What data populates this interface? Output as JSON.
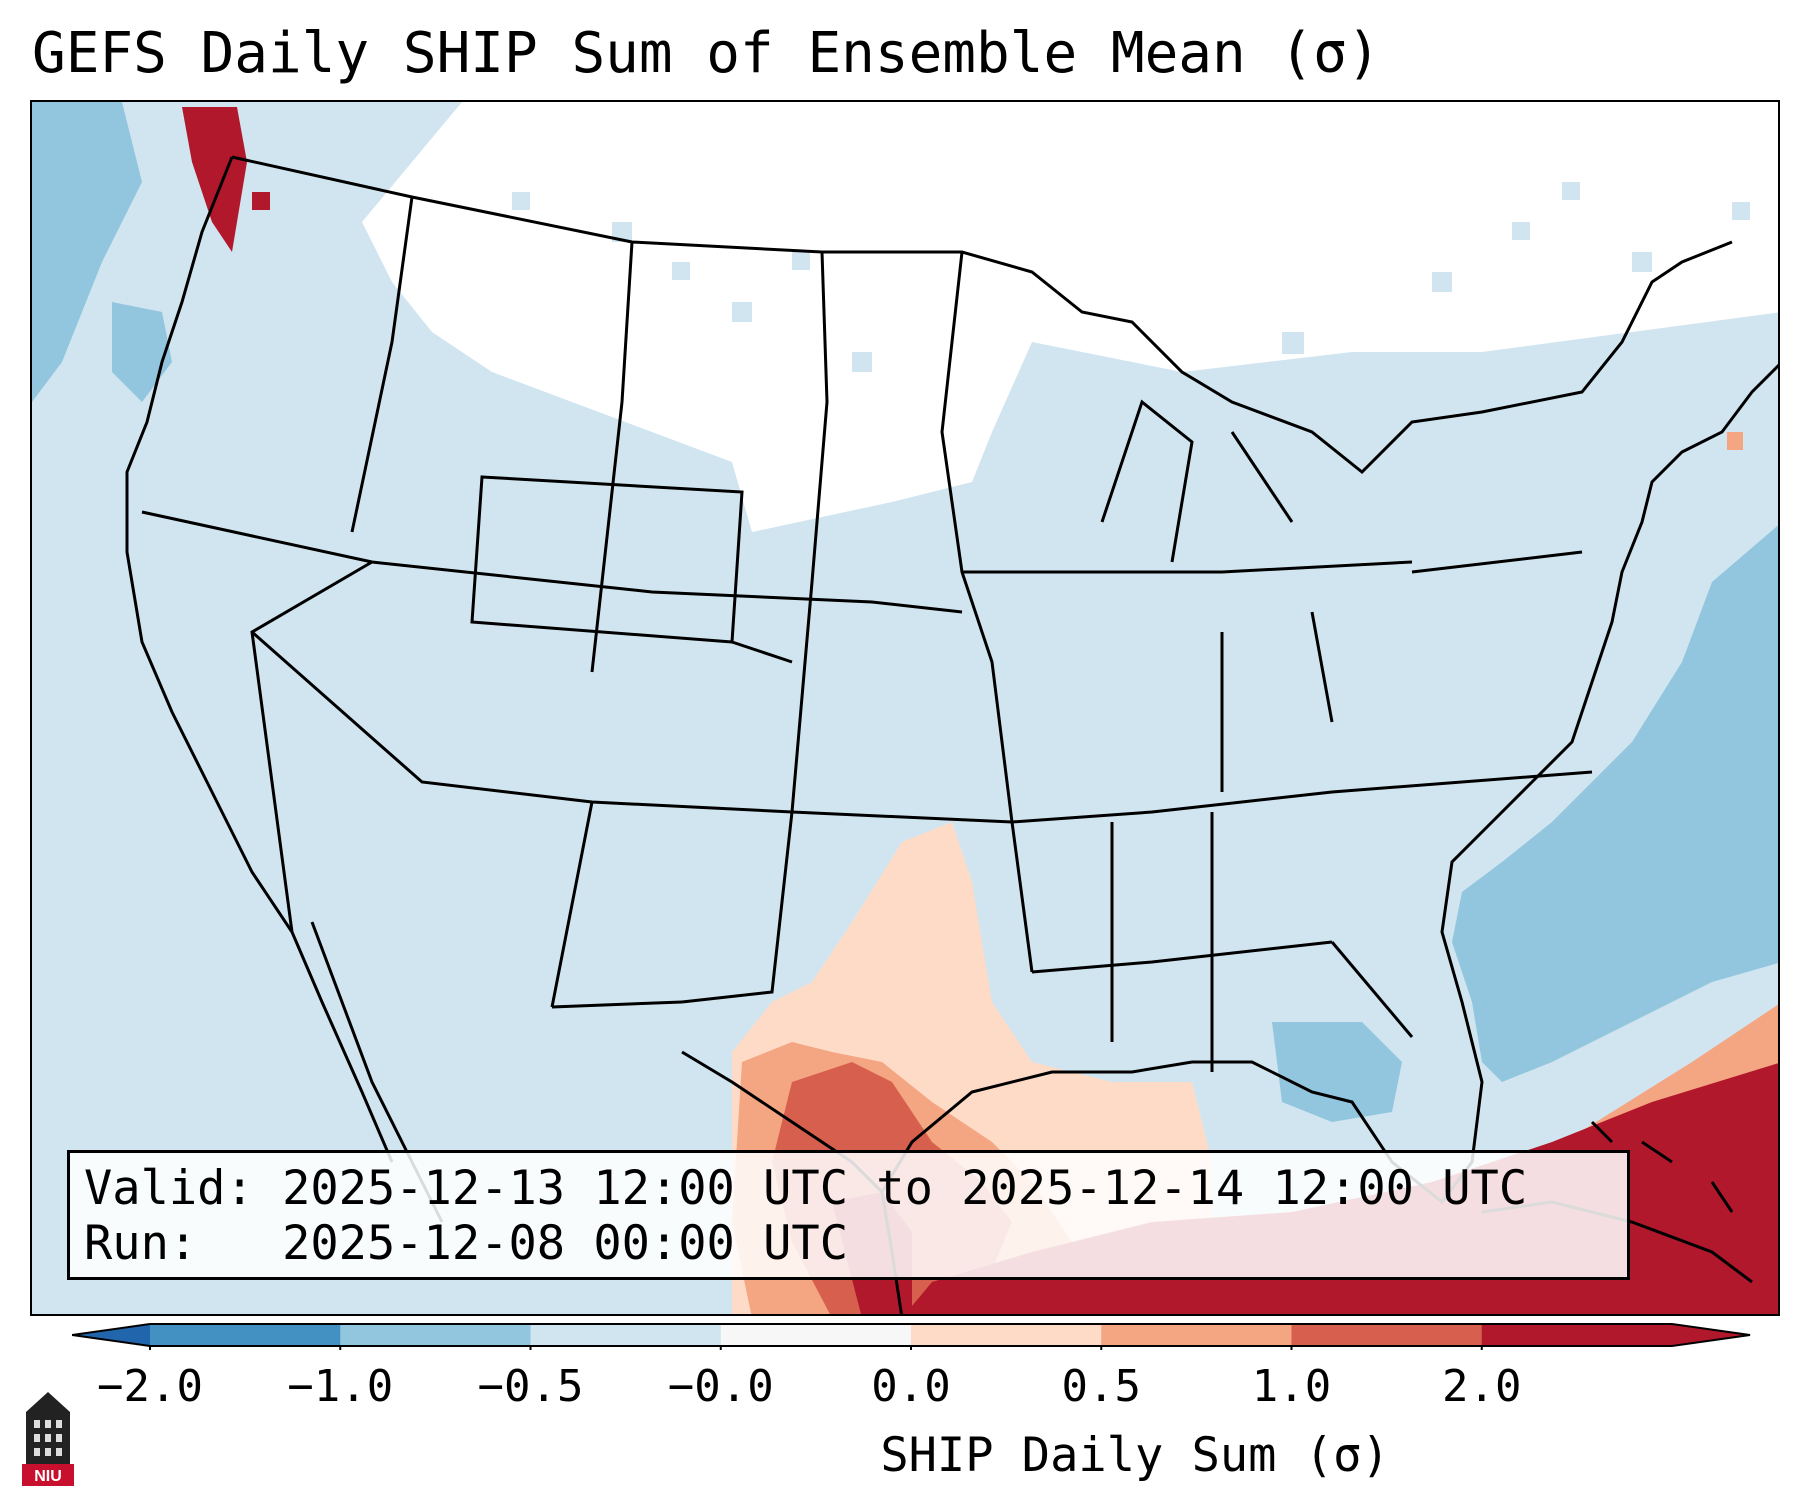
{
  "title": "GEFS Daily SHIP Sum of Ensemble Mean (σ)",
  "info": {
    "valid_label": "Valid:",
    "valid_value": "2025-12-13 12:00 UTC to 2025-12-14 12:00 UTC",
    "run_label": "Run:",
    "run_value": "2025-12-08 00:00 UTC"
  },
  "colorbar": {
    "label": "SHIP Daily Sum (σ)",
    "ticks": [
      "−2.0",
      "−1.0",
      "−0.5",
      "−0.0",
      "0.0",
      "0.5",
      "1.0",
      "2.0"
    ],
    "colors": [
      "#4391c3",
      "#92c5de",
      "#d1e5f0",
      "#f7f7f7",
      "#fddbc7",
      "#f4a582",
      "#d6604d",
      "#b2182b"
    ],
    "extend_low_color": "#2166ac",
    "extend_high_color": "#b2182b"
  },
  "map": {
    "background_color": "#d1e5f0",
    "anomaly_colors": {
      "strong_positive": "#b2182b",
      "positive": "#d6604d",
      "weak_positive": "#f4a582",
      "slight_positive": "#fddbc7",
      "negative": "#92c5de",
      "zero": "#ffffff"
    }
  },
  "logo": {
    "text": "NIU",
    "color": "#c8102e"
  }
}
